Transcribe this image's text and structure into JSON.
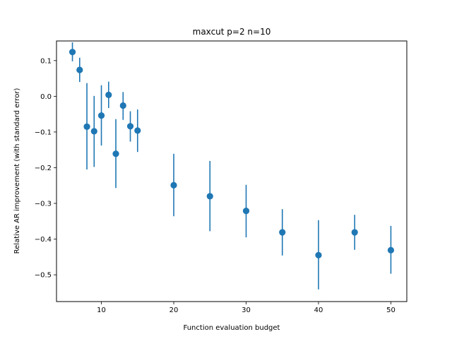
{
  "chart_data": {
    "type": "scatter",
    "title": "maxcut p=2 n=10",
    "xlabel": "Function evaluation budget",
    "ylabel": "Relative AR improvement (with standard error)",
    "xlim": [
      3.8,
      52.2
    ],
    "ylim": [
      -0.575,
      0.155
    ],
    "xticks": [
      10,
      20,
      30,
      40,
      50
    ],
    "yticks": [
      0.1,
      0.0,
      -0.1,
      -0.2,
      -0.3,
      -0.4,
      -0.5
    ],
    "ytick_labels": [
      "0.1",
      "0.0",
      "−0.1",
      "−0.2",
      "−0.3",
      "−0.4",
      "−0.5"
    ],
    "marker_color": "#1f77b4",
    "grid": false,
    "points": [
      {
        "x": 6,
        "y": 0.124,
        "lo": 0.098,
        "hi": 0.151
      },
      {
        "x": 7,
        "y": 0.074,
        "lo": 0.04,
        "hi": 0.108
      },
      {
        "x": 8,
        "y": -0.085,
        "lo": -0.205,
        "hi": 0.037
      },
      {
        "x": 9,
        "y": -0.098,
        "lo": -0.198,
        "hi": 0.001
      },
      {
        "x": 10,
        "y": -0.054,
        "lo": -0.138,
        "hi": 0.031
      },
      {
        "x": 11,
        "y": 0.004,
        "lo": -0.033,
        "hi": 0.041
      },
      {
        "x": 12,
        "y": -0.161,
        "lo": -0.257,
        "hi": -0.064
      },
      {
        "x": 13,
        "y": -0.026,
        "lo": -0.066,
        "hi": 0.012
      },
      {
        "x": 14,
        "y": -0.084,
        "lo": -0.127,
        "hi": -0.042
      },
      {
        "x": 15,
        "y": -0.096,
        "lo": -0.156,
        "hi": -0.037
      },
      {
        "x": 20,
        "y": -0.249,
        "lo": -0.336,
        "hi": -0.161
      },
      {
        "x": 25,
        "y": -0.28,
        "lo": -0.378,
        "hi": -0.181
      },
      {
        "x": 30,
        "y": -0.321,
        "lo": -0.395,
        "hi": -0.248
      },
      {
        "x": 35,
        "y": -0.381,
        "lo": -0.446,
        "hi": -0.316
      },
      {
        "x": 40,
        "y": -0.445,
        "lo": -0.541,
        "hi": -0.347
      },
      {
        "x": 45,
        "y": -0.381,
        "lo": -0.43,
        "hi": -0.332
      },
      {
        "x": 50,
        "y": -0.431,
        "lo": -0.497,
        "hi": -0.363
      }
    ]
  }
}
